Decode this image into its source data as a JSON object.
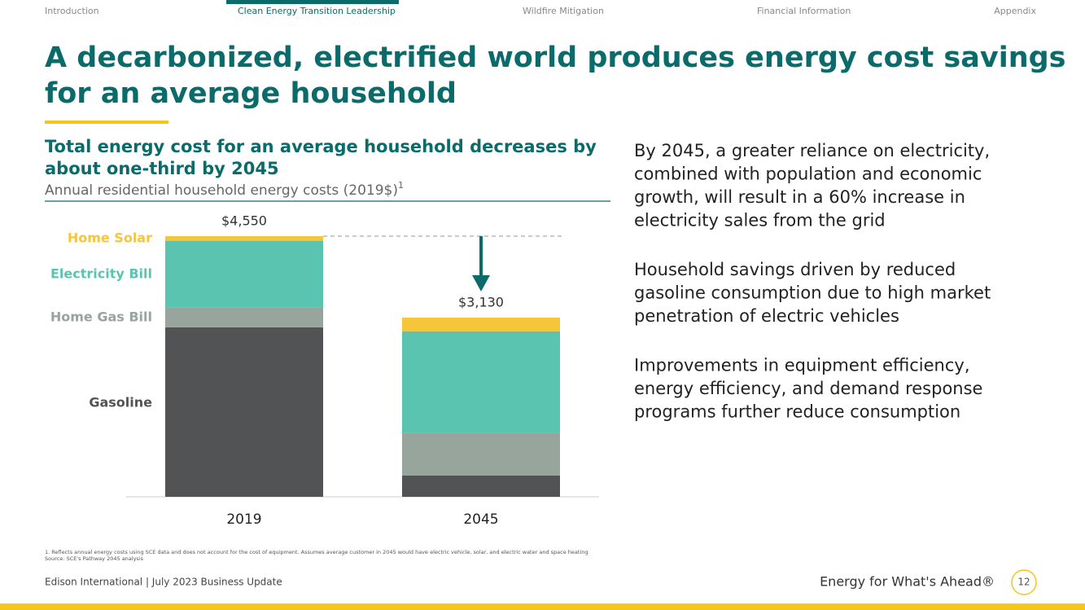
{
  "nav": [
    "Introduction",
    "Clean Energy Transition Leadership",
    "Wildfire Mitigation",
    "Financial Information",
    "Appendix"
  ],
  "title": [
    "A decarbonized, electrified world produces energy cost savings",
    "for an average household"
  ],
  "chart_data": {
    "type": "stacked_bar",
    "title": [
      "Total energy cost for an average household decreases by",
      "about one-third by 2045"
    ],
    "subtitle": "Annual residential household energy costs (2019$)",
    "subtitle_marker": "1",
    "categories": [
      "2019",
      "2045"
    ],
    "series": [
      {
        "name": "Gasoline",
        "color": "#525354",
        "values": [
          2960,
          370
        ]
      },
      {
        "name": "Home Gas Bill",
        "color": "#97a59c",
        "values": [
          340,
          740
        ]
      },
      {
        "name": "Electricity Bill",
        "color": "#5bc4b1",
        "values": [
          1170,
          1780
        ]
      },
      {
        "name": "Home Solar",
        "color": "#f5c53a",
        "values": [
          80,
          240
        ]
      }
    ],
    "totals": [
      4550,
      3130
    ],
    "total_labels": [
      "$4,550",
      "$3,130"
    ]
  },
  "paragraphs": [
    [
      "By 2045, a greater reliance on electricity,",
      "combined with population and economic",
      "growth, will result in a 60% increase in",
      "electricity sales from the grid"
    ],
    [
      "Household savings driven by reduced",
      "gasoline consumption due to high market",
      "penetration of electric vehicles"
    ],
    [
      "Improvements in equipment efficiency,",
      "energy efficiency, and demand response",
      "programs further reduce consumption"
    ]
  ],
  "footnotes": [
    "1.  Reflects annual energy costs using SCE data and does not account for the cost of equipment. Assumes average customer in 2045 would have electric vehicle, solar, and electric water and space heating",
    "Source: SCE's Pathway 2045 analysis"
  ],
  "footer": {
    "left": "Edison International |  July 2023 Business Update",
    "tagline": "Energy for What's Ahead®",
    "page": "12"
  }
}
